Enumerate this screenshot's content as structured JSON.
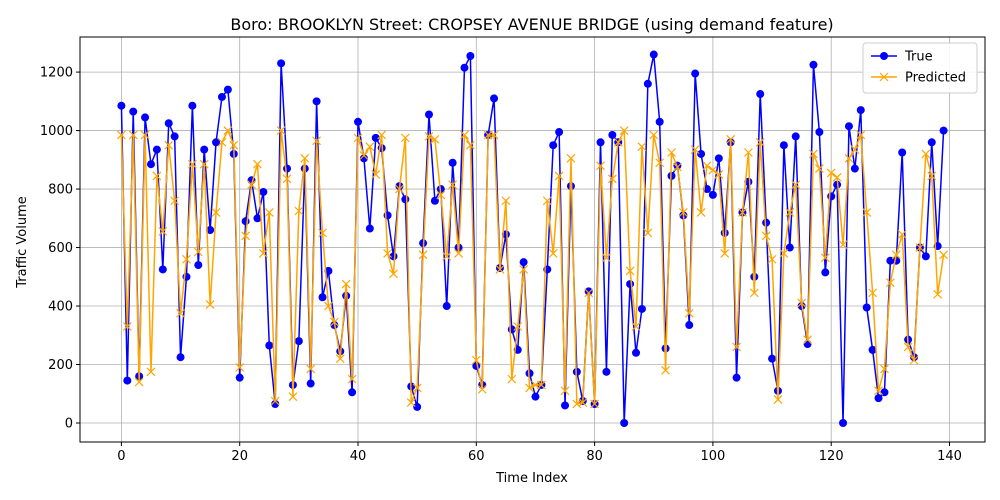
{
  "chart_data": {
    "type": "line",
    "title": "Boro: BROOKLYN Street: CROPSEY AVENUE BRIDGE (using demand feature)",
    "xlabel": "Time Index",
    "ylabel": "Traffic Volume",
    "xlim": [
      -7,
      146
    ],
    "ylim": [
      -65,
      1320
    ],
    "xticks": [
      0,
      20,
      40,
      60,
      80,
      100,
      120,
      140
    ],
    "yticks": [
      0,
      200,
      400,
      600,
      800,
      1000,
      1200
    ],
    "grid": true,
    "legend_position": "top-right",
    "series": [
      {
        "name": "True",
        "color": "#0000ff",
        "marker": "circle",
        "values": [
          1085,
          145,
          1065,
          160,
          1045,
          885,
          935,
          525,
          1025,
          980,
          225,
          500,
          1085,
          540,
          935,
          660,
          960,
          1115,
          1140,
          920,
          155,
          690,
          830,
          700,
          790,
          265,
          65,
          1230,
          870,
          130,
          280,
          870,
          135,
          1100,
          430,
          520,
          335,
          245,
          435,
          105,
          1030,
          905,
          665,
          975,
          940,
          710,
          570,
          810,
          765,
          125,
          55,
          615,
          1055,
          760,
          800,
          400,
          890,
          600,
          1215,
          1255,
          195,
          130,
          985,
          1110,
          530,
          645,
          320,
          250,
          550,
          170,
          90,
          130,
          525,
          950,
          995,
          60,
          810,
          175,
          75,
          450,
          65,
          960,
          175,
          985,
          960,
          0,
          475,
          240,
          390,
          1160,
          1260,
          1030,
          255,
          845,
          880,
          710,
          335,
          1195,
          920,
          800,
          780,
          905,
          650,
          960,
          155,
          720,
          825,
          500,
          1125,
          685,
          220,
          110,
          950,
          600,
          980,
          400,
          270,
          1225,
          995,
          515,
          775,
          815,
          0,
          1015,
          870,
          1070,
          395,
          250,
          85,
          105,
          555,
          555,
          925,
          285,
          225,
          600,
          570,
          960,
          605,
          1000
        ]
      },
      {
        "name": "Predicted",
        "color": "#ffa500",
        "marker": "x",
        "values": [
          985,
          330,
          985,
          140,
          985,
          175,
          845,
          655,
          950,
          760,
          375,
          560,
          885,
          585,
          885,
          405,
          720,
          960,
          1000,
          950,
          190,
          640,
          815,
          885,
          580,
          720,
          75,
          1000,
          835,
          90,
          725,
          905,
          185,
          965,
          650,
          400,
          345,
          220,
          475,
          150,
          975,
          915,
          945,
          850,
          985,
          580,
          510,
          800,
          975,
          70,
          120,
          575,
          980,
          970,
          780,
          570,
          815,
          580,
          985,
          950,
          215,
          115,
          985,
          985,
          525,
          760,
          150,
          330,
          525,
          120,
          130,
          130,
          760,
          580,
          845,
          110,
          905,
          65,
          70,
          445,
          65,
          880,
          565,
          835,
          960,
          1000,
          520,
          330,
          945,
          650,
          985,
          890,
          180,
          925,
          875,
          720,
          375,
          935,
          720,
          880,
          865,
          850,
          580,
          970,
          260,
          720,
          925,
          445,
          960,
          640,
          560,
          80,
          580,
          720,
          815,
          410,
          285,
          920,
          870,
          565,
          855,
          840,
          610,
          905,
          935,
          985,
          720,
          445,
          110,
          185,
          480,
          575,
          645,
          260,
          215,
          600,
          920,
          845,
          440,
          575
        ]
      }
    ]
  }
}
